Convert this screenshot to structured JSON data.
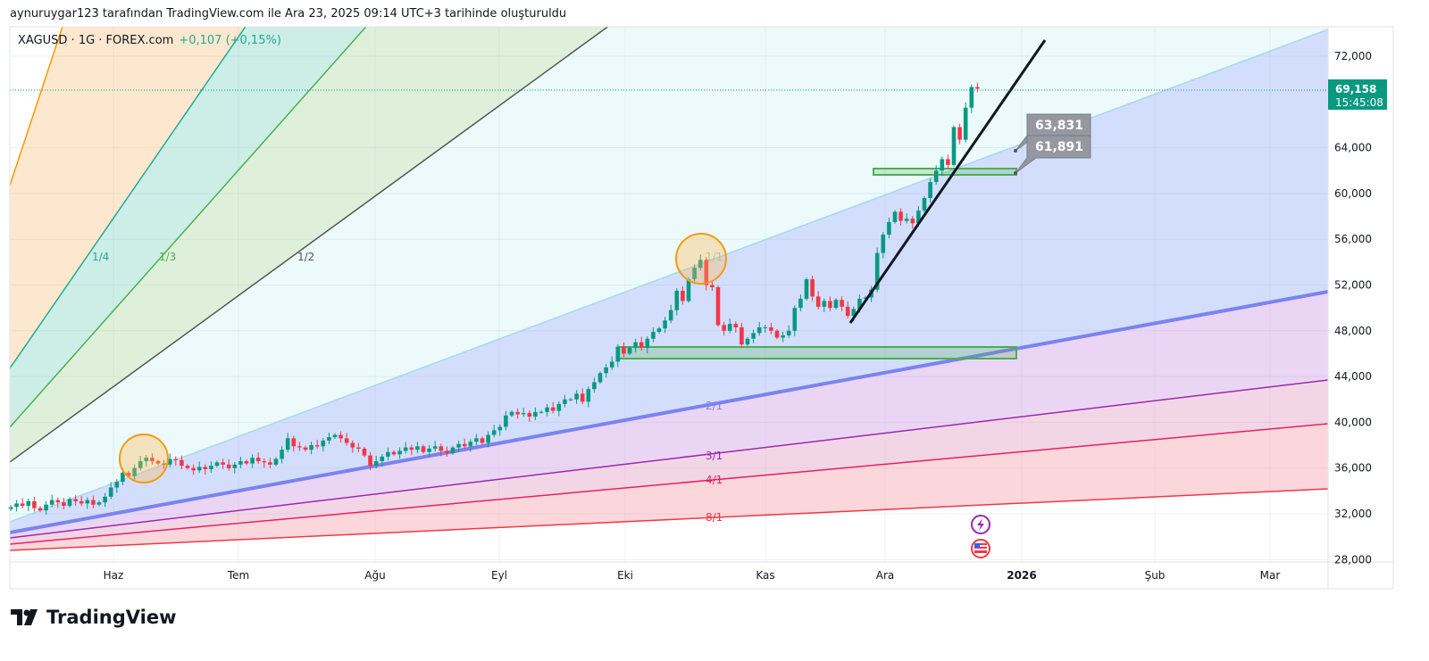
{
  "caption": "aynuruygar123 tarafından TradingView.com ile Ara 23, 2025 09:14 UTC+3 tarihinde oluşturuldu",
  "symbol": {
    "name": "XAGUSD · 1G · FOREX.com",
    "change": "+0,107 (+0,15%)"
  },
  "logo": "TradingView",
  "last_price": {
    "value": "69,158",
    "countdown": "15:45:08",
    "color": "#089981"
  },
  "callouts": [
    "63,831",
    "61,891"
  ],
  "gann_labels": [
    "1/4",
    "1/3",
    "1/2",
    "1/1",
    "2/1",
    "3/1",
    "4/1",
    "8/1"
  ],
  "events": [
    "lightning-icon",
    "us-flag-icon"
  ],
  "colors": {
    "up": "#089981",
    "down": "#f23645"
  },
  "chart_data": {
    "type": "candlestick",
    "title": "XAGUSD · 1G · FOREX.com",
    "y_ticks": [
      "72,000",
      "64,000",
      "60,000",
      "56,000",
      "52,000",
      "48,000",
      "44,000",
      "40,000",
      "36,000",
      "32,000",
      "28,000"
    ],
    "y_tick_values": [
      72000,
      64000,
      60000,
      56000,
      52000,
      48000,
      44000,
      40000,
      36000,
      32000,
      28000
    ],
    "ylim": [
      28000,
      72000
    ],
    "x_ticks": [
      "Haz",
      "Tem",
      "Ağu",
      "Eyl",
      "Eki",
      "Kas",
      "Ara",
      "2026",
      "Şub",
      "Mar"
    ],
    "grid": true,
    "closes": [
      32600,
      32900,
      32700,
      33100,
      32500,
      32300,
      32800,
      33200,
      33000,
      32700,
      33300,
      33100,
      32900,
      33200,
      32800,
      33000,
      33500,
      34300,
      34800,
      35600,
      35300,
      36000,
      36600,
      36900,
      36600,
      36400,
      36300,
      36800,
      36700,
      36200,
      36000,
      35800,
      36100,
      35900,
      36200,
      36500,
      36300,
      36000,
      36300,
      36600,
      36400,
      36900,
      36600,
      36500,
      36300,
      36800,
      37600,
      38600,
      37900,
      37800,
      37600,
      38000,
      37900,
      38400,
      38700,
      38900,
      38600,
      38200,
      37800,
      37700,
      37100,
      36200,
      36600,
      37000,
      37400,
      37200,
      37500,
      37800,
      37600,
      37900,
      37400,
      37700,
      37900,
      37500,
      37300,
      37800,
      38100,
      37900,
      38300,
      38600,
      38200,
      38900,
      39300,
      39600,
      40600,
      40900,
      40700,
      40800,
      40500,
      40900,
      40900,
      41300,
      41000,
      41600,
      42000,
      42000,
      42500,
      41800,
      42900,
      43500,
      44300,
      44800,
      45300,
      46600,
      46000,
      46500,
      47000,
      46500,
      47300,
      47900,
      48200,
      48900,
      49800,
      51500,
      50600,
      52500,
      53500,
      54200,
      52000,
      51800,
      48500,
      48000,
      48600,
      48300,
      46800,
      47300,
      47800,
      48300,
      48300,
      48000,
      47400,
      47600,
      48000,
      50000,
      50800,
      52500,
      51000,
      50100,
      50600,
      50000,
      50700,
      50100,
      49300,
      49900,
      50800,
      50900,
      51600,
      54800,
      56400,
      57500,
      58400,
      57600,
      57800,
      57400,
      58500,
      59600,
      61000,
      62000,
      63000,
      62500,
      65800,
      64700,
      67500,
      69300,
      69158
    ],
    "annotations": {
      "price_labels": [
        63831,
        61891
      ],
      "support_zones": [
        [
          45700,
          46700
        ],
        [
          61891,
          62300
        ]
      ],
      "gann_fan_levels": [
        "1/8",
        "1/4",
        "1/3",
        "1/2",
        "1/1",
        "2/1",
        "3/1",
        "4/1",
        "8/1"
      ]
    }
  }
}
